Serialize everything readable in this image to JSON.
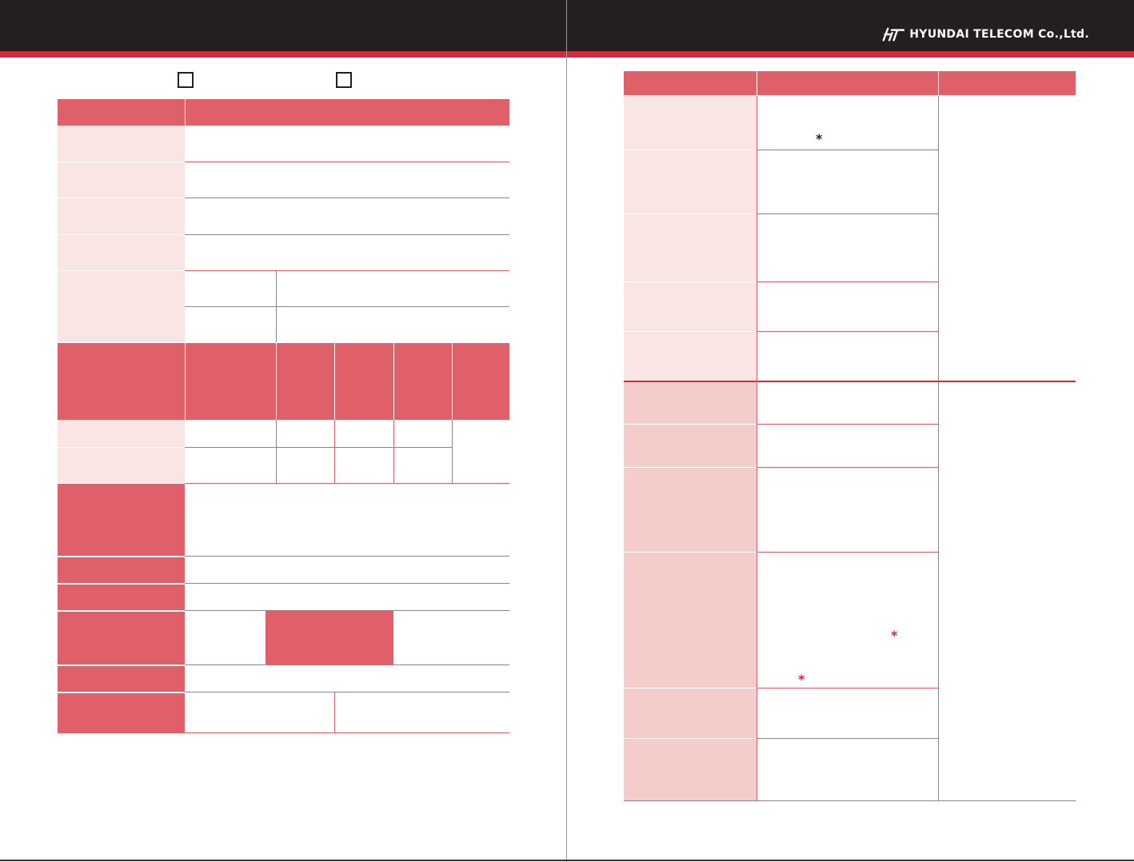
{
  "header": {
    "company": "HYUNDAI TELECOM Co.,Ltd.",
    "logo_icon": "ht-logo-mark",
    "colors": {
      "bar": "#231f20",
      "accent": "#d42a3d",
      "header_cell": "#df6069",
      "label_cell": "#f9e6e4",
      "label_cell_alt": "#f3cdc9"
    }
  },
  "left_page": {
    "checkbox_count": 2
  },
  "right_page": {
    "marks": {
      "asterisk": "*"
    }
  }
}
